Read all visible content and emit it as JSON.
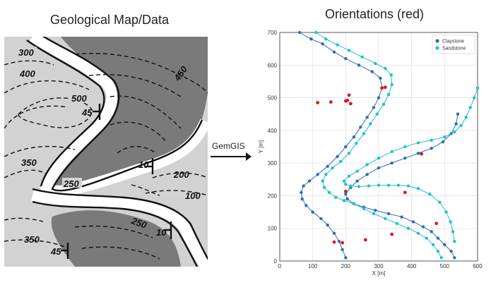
{
  "left_panel": {
    "title": "Geological Map/Data",
    "contour_labels": [
      "300",
      "400",
      "500",
      "45",
      "450",
      "350",
      "250",
      "10",
      "200",
      "100",
      "250",
      "10",
      "350",
      "45"
    ]
  },
  "arrow": {
    "label": "GemGIS"
  },
  "right_panel": {
    "title": "Orientations (red)"
  },
  "chart_data": {
    "type": "scatter",
    "title": "Orientations (red)",
    "xlabel": "X [m]",
    "ylabel": "Y [m]",
    "xlim": [
      0,
      600
    ],
    "ylim": [
      0,
      700
    ],
    "xticks": [
      0,
      100,
      200,
      300,
      400,
      500,
      600
    ],
    "yticks": [
      0,
      100,
      200,
      300,
      400,
      500,
      600,
      700
    ],
    "grid": true,
    "legend_position": "top-right",
    "colors": {
      "Claystone": "#2f6db5",
      "Sandstone": "#21c0d0",
      "orientations": "#e0161b"
    },
    "series": [
      {
        "name": "Claystone",
        "points": [
          [
            60,
            700
          ],
          [
            95,
            680
          ],
          [
            130,
            665
          ],
          [
            165,
            640
          ],
          [
            200,
            620
          ],
          [
            240,
            600
          ],
          [
            280,
            580
          ],
          [
            305,
            560
          ],
          [
            310,
            530
          ],
          [
            300,
            500
          ],
          [
            285,
            470
          ],
          [
            265,
            440
          ],
          [
            245,
            410
          ],
          [
            225,
            380
          ],
          [
            200,
            350
          ],
          [
            175,
            320
          ],
          [
            145,
            290
          ],
          [
            115,
            265
          ],
          [
            90,
            245
          ],
          [
            72,
            230
          ],
          [
            65,
            210
          ],
          [
            68,
            190
          ],
          [
            80,
            170
          ],
          [
            100,
            150
          ],
          [
            125,
            130
          ],
          [
            145,
            110
          ],
          [
            165,
            85
          ],
          [
            180,
            60
          ],
          [
            190,
            35
          ],
          [
            200,
            10
          ]
        ]
      },
      {
        "name": "Claystone",
        "points": [
          [
            540,
            450
          ],
          [
            535,
            420
          ],
          [
            520,
            390
          ],
          [
            495,
            365
          ],
          [
            460,
            345
          ],
          [
            420,
            330
          ],
          [
            380,
            315
          ],
          [
            340,
            300
          ],
          [
            300,
            285
          ],
          [
            265,
            265
          ],
          [
            235,
            245
          ],
          [
            215,
            225
          ],
          [
            200,
            205
          ],
          [
            205,
            190
          ],
          [
            225,
            175
          ],
          [
            255,
            165
          ],
          [
            290,
            155
          ],
          [
            330,
            145
          ],
          [
            370,
            135
          ],
          [
            405,
            120
          ],
          [
            435,
            105
          ],
          [
            460,
            90
          ],
          [
            480,
            70
          ],
          [
            500,
            50
          ],
          [
            520,
            30
          ],
          [
            530,
            10
          ]
        ]
      },
      {
        "name": "Sandstone",
        "points": [
          [
            110,
            700
          ],
          [
            140,
            680
          ],
          [
            175,
            662
          ],
          [
            210,
            645
          ],
          [
            250,
            625
          ],
          [
            290,
            605
          ],
          [
            320,
            590
          ],
          [
            338,
            570
          ],
          [
            340,
            540
          ],
          [
            330,
            510
          ],
          [
            315,
            480
          ],
          [
            295,
            450
          ],
          [
            275,
            420
          ],
          [
            255,
            390
          ],
          [
            232,
            360
          ],
          [
            210,
            330
          ],
          [
            185,
            305
          ],
          [
            160,
            285
          ],
          [
            140,
            265
          ],
          [
            130,
            245
          ],
          [
            135,
            225
          ],
          [
            150,
            210
          ],
          [
            170,
            195
          ],
          [
            195,
            185
          ],
          [
            225,
            175
          ],
          [
            255,
            160
          ],
          [
            285,
            145
          ],
          [
            320,
            130
          ],
          [
            355,
            115
          ],
          [
            390,
            100
          ],
          [
            420,
            85
          ],
          [
            445,
            70
          ],
          [
            465,
            50
          ],
          [
            480,
            30
          ],
          [
            490,
            10
          ]
        ]
      },
      {
        "name": "Sandstone",
        "points": [
          [
            600,
            530
          ],
          [
            590,
            500
          ],
          [
            578,
            470
          ],
          [
            565,
            440
          ],
          [
            550,
            415
          ],
          [
            530,
            395
          ],
          [
            500,
            380
          ],
          [
            460,
            370
          ],
          [
            420,
            362
          ],
          [
            380,
            350
          ],
          [
            340,
            335
          ],
          [
            300,
            315
          ],
          [
            265,
            295
          ],
          [
            235,
            275
          ],
          [
            210,
            260
          ],
          [
            195,
            245
          ],
          [
            200,
            235
          ],
          [
            215,
            230
          ],
          [
            240,
            228
          ],
          [
            270,
            230
          ],
          [
            300,
            232
          ],
          [
            330,
            232
          ],
          [
            360,
            232
          ],
          [
            390,
            230
          ],
          [
            420,
            222
          ],
          [
            455,
            205
          ],
          [
            485,
            180
          ],
          [
            505,
            150
          ],
          [
            518,
            120
          ],
          [
            525,
            90
          ],
          [
            530,
            60
          ]
        ]
      }
    ],
    "orientations": [
      [
        115,
        485
      ],
      [
        155,
        487
      ],
      [
        200,
        490
      ],
      [
        205,
        492
      ],
      [
        210,
        508
      ],
      [
        215,
        482
      ],
      [
        320,
        532
      ],
      [
        310,
        530
      ],
      [
        200,
        213
      ],
      [
        380,
        210
      ],
      [
        430,
        328
      ],
      [
        475,
        115
      ],
      [
        340,
        82
      ],
      [
        260,
        65
      ],
      [
        190,
        56
      ],
      [
        165,
        58
      ]
    ]
  }
}
